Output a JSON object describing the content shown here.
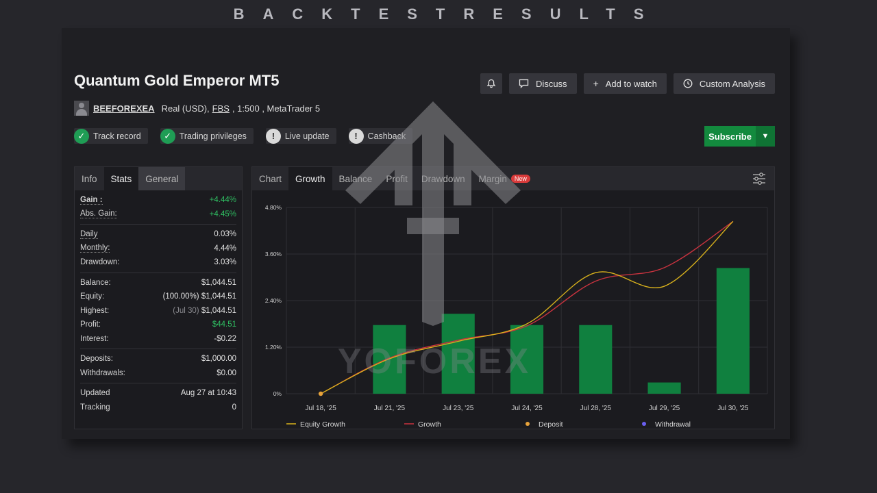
{
  "banner": "BACKTESTRESULTS",
  "header": {
    "title": "Quantum Gold Emperor MT5",
    "username": "BEEFOREXEA",
    "account": "Real (USD),",
    "broker": "FBS",
    "leverage": ", 1:500 , MetaTrader 5"
  },
  "badges": [
    {
      "label": "Track record",
      "status": "ok"
    },
    {
      "label": "Trading privileges",
      "status": "ok"
    },
    {
      "label": "Live update",
      "status": "warn"
    },
    {
      "label": "Cashback",
      "status": "warn"
    }
  ],
  "buttons": {
    "discuss": "Discuss",
    "watch": "Add to watch",
    "analysis": "Custom Analysis",
    "subscribe": "Subscribe"
  },
  "left_tabs": [
    "Info",
    "Stats",
    "General"
  ],
  "stats": {
    "gain_label": "Gain :",
    "gain": "+4.44%",
    "abs_gain_label": "Abs. Gain:",
    "abs_gain": "+4.45%",
    "daily_label": "Daily",
    "daily": "0.03%",
    "monthly_label": "Monthly:",
    "monthly": "4.44%",
    "drawdown_label": "Drawdown:",
    "drawdown": "3.03%",
    "balance_label": "Balance:",
    "balance": "$1,044.51",
    "equity_label": "Equity:",
    "equity_pct": "(100.00%)",
    "equity": "$1,044.51",
    "highest_label": "Highest:",
    "highest_date": "(Jul 30)",
    "highest": "$1,044.51",
    "profit_label": "Profit:",
    "profit": "$44.51",
    "interest_label": "Interest:",
    "interest": "-$0.22",
    "deposits_label": "Deposits:",
    "deposits": "$1,000.00",
    "withdrawals_label": "Withdrawals:",
    "withdrawals": "$0.00",
    "updated_label": "Updated",
    "updated": "Aug 27 at 10:43",
    "tracking_label": "Tracking",
    "tracking": "0"
  },
  "chart_tabs": [
    "Chart",
    "Growth",
    "Balance",
    "Profit",
    "Drawdown",
    "Margin"
  ],
  "chart_new_badge": "New",
  "watermark": "YOFOREX",
  "colors": {
    "bar": "#10803f",
    "equity": "#d8b11c",
    "growth": "#c9333f",
    "deposit": "#e8a33b",
    "withdrawal": "#6a5ff0"
  },
  "chart_data": {
    "type": "bar",
    "categories": [
      "Jul 18, '25",
      "Jul 21, '25",
      "Jul 23, '25",
      "Jul 24, '25",
      "Jul 28, '25",
      "Jul 29, '25",
      "Jul 30, '25"
    ],
    "bars": [
      0,
      1.77,
      2.06,
      1.77,
      1.77,
      0.29,
      3.24
    ],
    "series": [
      {
        "name": "Equity Growth",
        "values": [
          0,
          0.9,
          1.35,
          1.8,
          3.12,
          2.77,
          4.44
        ]
      },
      {
        "name": "Growth",
        "values": [
          0,
          0.92,
          1.38,
          1.75,
          2.9,
          3.25,
          4.44
        ]
      }
    ],
    "deposit_point": {
      "category": "Jul 18, '25",
      "value": 0
    },
    "legend": [
      "Equity Growth",
      "Growth",
      "Deposit",
      "Withdrawal"
    ],
    "y_ticks": [
      "0%",
      "1.20%",
      "2.40%",
      "3.60%",
      "4.80%"
    ],
    "ylim": [
      0,
      4.8
    ],
    "grid": true,
    "legend_position": "bottom"
  }
}
